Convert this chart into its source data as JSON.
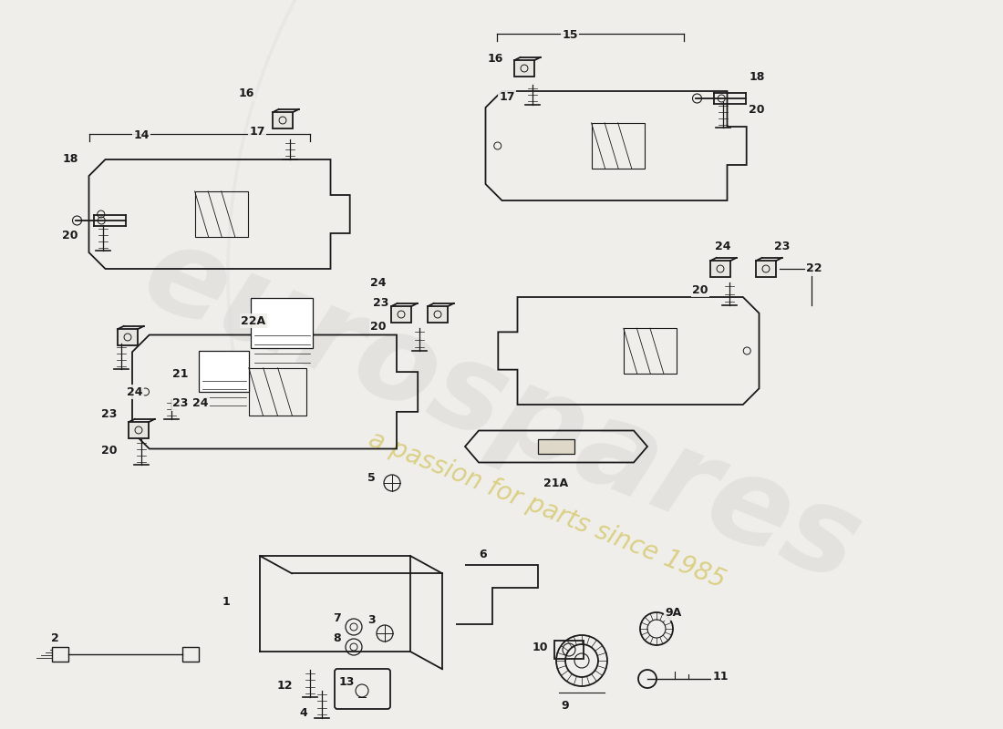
{
  "bg_color": "#f0eeea",
  "line_color": "#1a1a1a",
  "watermark1": "eurospares",
  "watermark2": "a passion for parts since 1985",
  "figsize": [
    11.0,
    8.0
  ],
  "dpi": 100,
  "xlim": [
    0,
    1100
  ],
  "ylim": [
    0,
    800
  ]
}
